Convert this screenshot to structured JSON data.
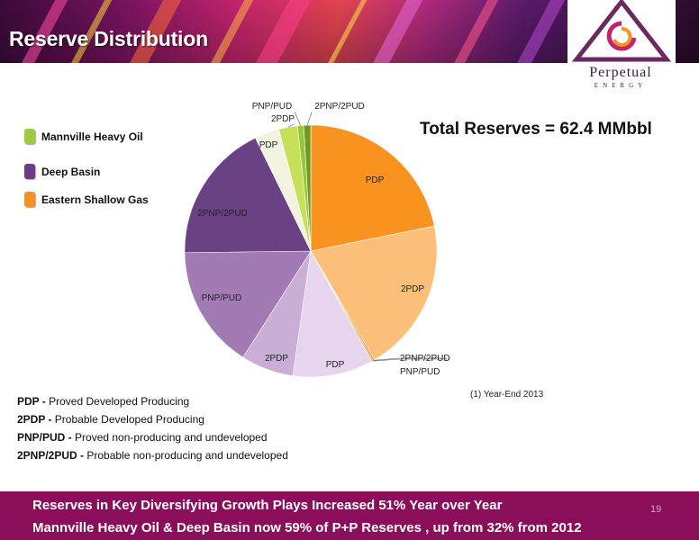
{
  "header": {
    "title": "Reserve Distribution"
  },
  "logo": {
    "name": "Perpetual",
    "sub": "ENERGY"
  },
  "legend": [
    {
      "label": "Mannville Heavy Oil",
      "color": "#9ccc3c"
    },
    {
      "label": "Deep Basin",
      "color": "#6b3b8a"
    },
    {
      "label": "Eastern Shallow Gas",
      "color": "#f7901e"
    }
  ],
  "total": "Total Reserves = 62.4 MMbbl",
  "chart_data": {
    "type": "pie",
    "slices": [
      {
        "label": "PDP",
        "group": "Eastern Shallow Gas",
        "value": 22.0,
        "color": "#f7931e"
      },
      {
        "label": "2PDP",
        "group": "Eastern Shallow Gas",
        "value": 19.9,
        "color": "#fbbf7a"
      },
      {
        "label": "2PNP/2PUD",
        "group": "Eastern Shallow Gas",
        "value": 0.2,
        "color": "#e07a10"
      },
      {
        "label": "PNP/PUD",
        "group": "Eastern Shallow Gas",
        "value": 0.2,
        "color": "#f4a44a"
      },
      {
        "label": "PDP",
        "group": "Deep Basin",
        "value": 10.4,
        "color": "#e6d5ec"
      },
      {
        "label": "2PDP",
        "group": "Deep Basin",
        "value": 6.8,
        "color": "#c9aed6"
      },
      {
        "label": "PNP/PUD",
        "group": "Deep Basin",
        "value": 15.9,
        "color": "#a27bb5"
      },
      {
        "label": "2PNP/2PUD",
        "group": "Deep Basin",
        "value": 18.1,
        "color": "#6a4183"
      },
      {
        "label": "PDP",
        "group": "Mannville Heavy Oil",
        "value": 3.2,
        "color": "#f2f4e0"
      },
      {
        "label": "2PDP",
        "group": "Mannville Heavy Oil",
        "value": 2.4,
        "color": "#c7e05a"
      },
      {
        "label": "PNP/PUD",
        "group": "Mannville Heavy Oil",
        "value": 0.8,
        "color": "#9cc63a"
      },
      {
        "label": "2PNP/2PUD",
        "group": "Mannville Heavy Oil",
        "value": 0.9,
        "color": "#6e9a22"
      }
    ]
  },
  "footnote": "(1)  Year-End 2013",
  "definitions": [
    {
      "term": "PDP -",
      "desc": " Proved Developed Producing"
    },
    {
      "term": "2PDP -",
      "desc": " Probable Developed Producing"
    },
    {
      "term": "PNP/PUD -",
      "desc": " Proved non-producing and undeveloped"
    },
    {
      "term": "2PNP/2PUD -",
      "desc": " Probable non-producing and undeveloped"
    }
  ],
  "bottom": {
    "line1": "Reserves in Key Diversifying Growth Plays Increased 51% Year over Year",
    "line2": "Mannville Heavy Oil  & Deep Basin now 59% of P+P Reserves , up from 32% from 2012"
  },
  "page_number": "19"
}
